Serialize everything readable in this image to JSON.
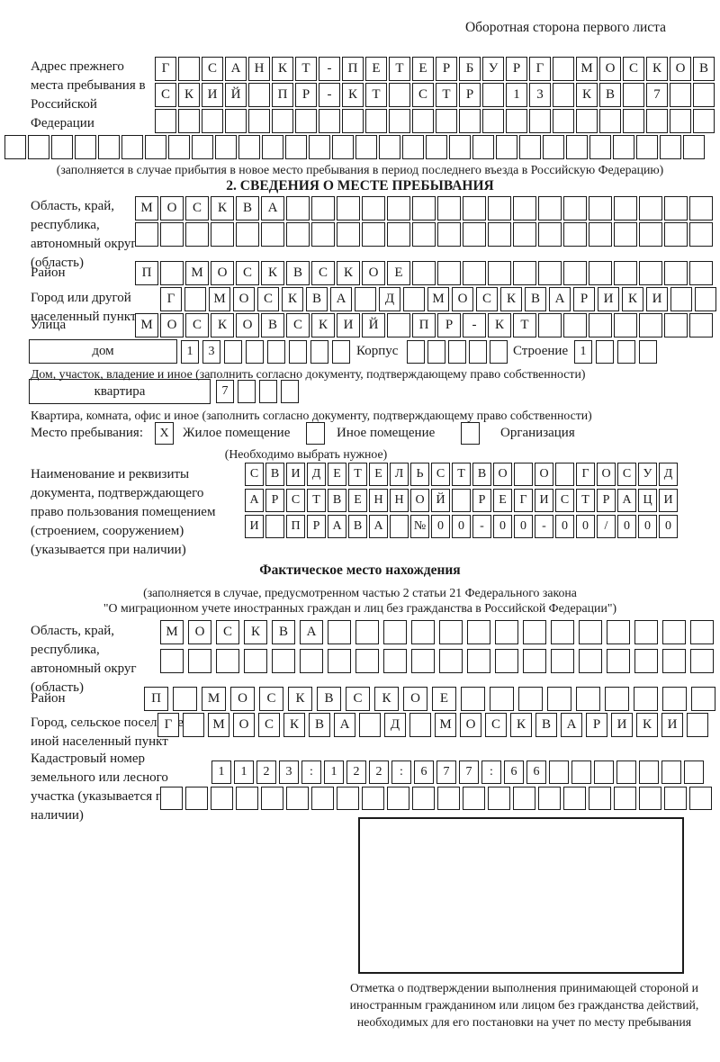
{
  "page": {
    "header_note": "Оборотная сторона первого листа"
  },
  "prev_address": {
    "label": "Адрес прежнего места пребывания в Российской Федерации",
    "rows": [
      [
        "Г",
        "",
        "С",
        "А",
        "Н",
        "К",
        "Т",
        "-",
        "П",
        "Е",
        "Т",
        "Е",
        "Р",
        "Б",
        "У",
        "Р",
        "Г",
        "",
        "М",
        "О",
        "С",
        "К",
        "О",
        "В"
      ],
      [
        "С",
        "К",
        "И",
        "Й",
        "",
        "П",
        "Р",
        "-",
        "К",
        "Т",
        "",
        "С",
        "Т",
        "Р",
        "",
        "1",
        "3",
        "",
        "К",
        "В",
        "",
        "7",
        "",
        ""
      ],
      [
        "",
        "",
        "",
        "",
        "",
        "",
        "",
        "",
        "",
        "",
        "",
        "",
        "",
        "",
        "",
        "",
        "",
        "",
        "",
        "",
        "",
        "",
        "",
        ""
      ]
    ],
    "full_row": [
      "",
      "",
      "",
      "",
      "",
      "",
      "",
      "",
      "",
      "",
      "",
      "",
      "",
      "",
      "",
      "",
      "",
      "",
      "",
      "",
      "",
      "",
      "",
      "",
      "",
      "",
      "",
      "",
      "",
      ""
    ],
    "caption": "(заполняется в случае прибытия в новое место пребывания в период последнего въезда в Российскую Федерацию)"
  },
  "section2": {
    "title": "2. СВЕДЕНИЯ О МЕСТЕ ПРЕБЫВАНИЯ",
    "region": {
      "label": "Область, край, республика, автономный округ (область)",
      "rows": [
        [
          "М",
          "О",
          "С",
          "К",
          "В",
          "А",
          "",
          "",
          "",
          "",
          "",
          "",
          "",
          "",
          "",
          "",
          "",
          "",
          "",
          "",
          "",
          "",
          ""
        ],
        [
          "",
          "",
          "",
          "",
          "",
          "",
          "",
          "",
          "",
          "",
          "",
          "",
          "",
          "",
          "",
          "",
          "",
          "",
          "",
          "",
          "",
          "",
          ""
        ]
      ]
    },
    "district": {
      "label": "Район",
      "row": [
        "П",
        "",
        "М",
        "О",
        "С",
        "К",
        "В",
        "С",
        "К",
        "О",
        "Е",
        "",
        "",
        "",
        "",
        "",
        "",
        "",
        "",
        "",
        "",
        "",
        ""
      ]
    },
    "city": {
      "label": "Город или другой населенный пункт",
      "row": [
        "Г",
        "",
        "М",
        "О",
        "С",
        "К",
        "В",
        "А",
        "",
        "Д",
        "",
        "М",
        "О",
        "С",
        "К",
        "В",
        "А",
        "Р",
        "И",
        "К",
        "И",
        "",
        ""
      ]
    },
    "street": {
      "label": "Улица",
      "row": [
        "М",
        "О",
        "С",
        "К",
        "О",
        "В",
        "С",
        "К",
        "И",
        "Й",
        "",
        "П",
        "Р",
        "-",
        "К",
        "Т",
        "",
        "",
        "",
        "",
        "",
        "",
        ""
      ]
    },
    "house": {
      "label": "дом",
      "row": [
        "1",
        "3",
        "",
        "",
        "",
        "",
        "",
        ""
      ],
      "korpus_label": "Корпус",
      "korpus_row": [
        "",
        "",
        "",
        "",
        ""
      ],
      "stroenie_label": "Строение",
      "stroenie_row": [
        "1",
        "",
        "",
        ""
      ],
      "caption": "Дом, участок, владение и иное (заполнить согласно документу, подтверждающему право собственности)"
    },
    "apartment": {
      "label": "квартира",
      "row": [
        "7",
        "",
        "",
        ""
      ],
      "caption": "Квартира, комната, офис и иное (заполнить согласно документу, подтверждающему право собственности)"
    },
    "stay_type": {
      "label": "Место пребывания:",
      "options": [
        {
          "label": "Жилое помещение",
          "checked": "X"
        },
        {
          "label": "Иное помещение",
          "checked": ""
        },
        {
          "label": "Организация",
          "checked": ""
        }
      ],
      "caption": "(Необходимо выбрать нужное)"
    },
    "document": {
      "label": "Наименование и реквизиты документа, подтверждающего право пользования помещением (строением, сооружением) (указывается при наличии)",
      "rows": [
        [
          "С",
          "В",
          "И",
          "Д",
          "Е",
          "Т",
          "Е",
          "Л",
          "Ь",
          "С",
          "Т",
          "В",
          "О",
          "",
          "О",
          "",
          "Г",
          "О",
          "С",
          "У",
          "Д"
        ],
        [
          "А",
          "Р",
          "С",
          "Т",
          "В",
          "Е",
          "Н",
          "Н",
          "О",
          "Й",
          "",
          "Р",
          "Е",
          "Г",
          "И",
          "С",
          "Т",
          "Р",
          "А",
          "Ц",
          "И"
        ],
        [
          "И",
          "",
          "П",
          "Р",
          "А",
          "В",
          "А",
          "",
          "№",
          "0",
          "0",
          "-",
          "0",
          "0",
          "-",
          "0",
          "0",
          "/",
          "0",
          "0",
          "0"
        ]
      ]
    }
  },
  "actual_location": {
    "title": "Фактическое место нахождения",
    "caption_line1": "(заполняется в случае, предусмотренном частью 2 статьи 21 Федерального закона",
    "caption_line2": "\"О миграционном учете иностранных граждан и лиц без гражданства в Российской Федерации\")",
    "region": {
      "label": "Область, край, республика, автономный округ (область)",
      "rows": [
        [
          "М",
          "О",
          "С",
          "К",
          "В",
          "А",
          "",
          "",
          "",
          "",
          "",
          "",
          "",
          "",
          "",
          "",
          "",
          "",
          "",
          ""
        ],
        [
          "",
          "",
          "",
          "",
          "",
          "",
          "",
          "",
          "",
          "",
          "",
          "",
          "",
          "",
          "",
          "",
          "",
          "",
          "",
          ""
        ]
      ]
    },
    "district": {
      "label": "Район",
      "row": [
        "П",
        "",
        "М",
        "О",
        "С",
        "К",
        "В",
        "С",
        "К",
        "О",
        "Е",
        "",
        "",
        "",
        "",
        "",
        "",
        "",
        "",
        ""
      ]
    },
    "city": {
      "label": "Город, сельское поселение, иной населенный пункт",
      "row": [
        "Г",
        "",
        "М",
        "О",
        "С",
        "К",
        "В",
        "А",
        "",
        "Д",
        "",
        "М",
        "О",
        "С",
        "К",
        "В",
        "А",
        "Р",
        "И",
        "К",
        "И",
        ""
      ]
    },
    "cadastral": {
      "label": "Кадастровый номер земельного или лесного участка (указывается при наличии)",
      "rows": [
        [
          "1",
          "1",
          "2",
          "3",
          ":",
          "1",
          "2",
          "2",
          ":",
          "6",
          "7",
          "7",
          ":",
          "6",
          "6",
          "",
          "",
          "",
          "",
          "",
          "",
          ""
        ],
        [
          "",
          "",
          "",
          "",
          "",
          "",
          "",
          "",
          "",
          "",
          "",
          "",
          "",
          "",
          "",
          "",
          "",
          "",
          "",
          "",
          "",
          ""
        ]
      ]
    }
  },
  "stamp": {
    "caption": "Отметка о подтверждении выполнения принимающей стороной и иностранным гражданином или лицом без гражданства действий, необходимых для его постановки на учет по месту пребывания"
  }
}
